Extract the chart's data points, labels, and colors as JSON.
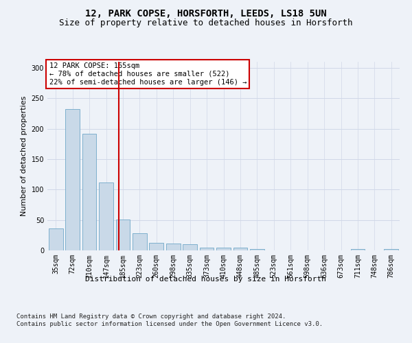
{
  "title": "12, PARK COPSE, HORSFORTH, LEEDS, LS18 5UN",
  "subtitle": "Size of property relative to detached houses in Horsforth",
  "xlabel": "Distribution of detached houses by size in Horsforth",
  "ylabel": "Number of detached properties",
  "categories": [
    "35sqm",
    "72sqm",
    "110sqm",
    "147sqm",
    "185sqm",
    "223sqm",
    "260sqm",
    "298sqm",
    "335sqm",
    "373sqm",
    "410sqm",
    "448sqm",
    "485sqm",
    "523sqm",
    "561sqm",
    "598sqm",
    "636sqm",
    "673sqm",
    "711sqm",
    "748sqm",
    "786sqm"
  ],
  "values": [
    36,
    232,
    192,
    112,
    51,
    28,
    12,
    11,
    10,
    4,
    4,
    4,
    2,
    0,
    0,
    0,
    0,
    0,
    2,
    0,
    2
  ],
  "bar_color": "#c9d9e8",
  "bar_edgecolor": "#6fa8c8",
  "grid_color": "#d0d8e8",
  "vline_x": 3.75,
  "vline_color": "#cc0000",
  "annotation_text": "12 PARK COPSE: 165sqm\n← 78% of detached houses are smaller (522)\n22% of semi-detached houses are larger (146) →",
  "annotation_box_color": "#ffffff",
  "annotation_box_edgecolor": "#cc0000",
  "footer_text": "Contains HM Land Registry data © Crown copyright and database right 2024.\nContains public sector information licensed under the Open Government Licence v3.0.",
  "ylim": [
    0,
    310
  ],
  "title_fontsize": 10,
  "subtitle_fontsize": 9,
  "label_fontsize": 8,
  "tick_fontsize": 7,
  "footer_fontsize": 6.5,
  "background_color": "#eef2f8"
}
